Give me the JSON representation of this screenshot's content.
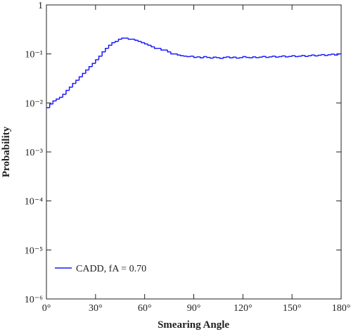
{
  "chart_data": {
    "type": "histogram",
    "x_label": "Smearing Angle",
    "y_label": "Probability",
    "log_y": true,
    "xlim": [
      0,
      180
    ],
    "ylim": [
      1e-06,
      1
    ],
    "xticks": [
      {
        "value": 0,
        "label": "0°"
      },
      {
        "value": 30,
        "label": "30°"
      },
      {
        "value": 60,
        "label": "60°"
      },
      {
        "value": 90,
        "label": "90°"
      },
      {
        "value": 120,
        "label": "120°"
      },
      {
        "value": 150,
        "label": "150°"
      },
      {
        "value": 180,
        "label": "180°"
      }
    ],
    "yticks": [
      {
        "value": 1e-06,
        "label": "10⁻⁶"
      },
      {
        "value": 1e-05,
        "label": "10⁻⁵"
      },
      {
        "value": 0.0001,
        "label": "10⁻⁴"
      },
      {
        "value": 0.001,
        "label": "10⁻³"
      },
      {
        "value": 0.01,
        "label": "10⁻²"
      },
      {
        "value": 0.1,
        "label": "10⁻¹"
      },
      1
    ],
    "legend": "lower left",
    "bins": [
      0,
      2,
      4,
      6,
      8,
      10,
      12,
      14,
      16,
      18,
      20,
      22,
      24,
      26,
      28,
      30,
      32,
      34,
      36,
      38,
      40,
      42,
      44,
      46,
      48,
      50,
      52,
      54,
      56,
      58,
      60,
      62,
      64,
      66,
      68,
      70,
      72,
      74,
      76,
      78,
      80,
      82,
      84,
      86,
      88,
      90,
      92,
      94,
      96,
      98,
      100,
      102,
      104,
      106,
      108,
      110,
      112,
      114,
      116,
      118,
      120,
      122,
      124,
      126,
      128,
      130,
      132,
      134,
      136,
      138,
      140,
      142,
      144,
      146,
      148,
      150,
      152,
      154,
      156,
      158,
      160,
      162,
      164,
      166,
      168,
      170,
      172,
      174,
      176,
      178,
      180
    ],
    "series": [
      {
        "name": "CADD, fA = 0.70",
        "color": "#1a1aff",
        "values": [
          0.008,
          0.0095,
          0.011,
          0.012,
          0.013,
          0.015,
          0.018,
          0.021,
          0.025,
          0.029,
          0.034,
          0.04,
          0.047,
          0.055,
          0.064,
          0.076,
          0.09,
          0.11,
          0.13,
          0.15,
          0.17,
          0.18,
          0.2,
          0.21,
          0.21,
          0.2,
          0.2,
          0.19,
          0.18,
          0.17,
          0.16,
          0.15,
          0.14,
          0.13,
          0.13,
          0.12,
          0.12,
          0.11,
          0.1,
          0.1,
          0.095,
          0.092,
          0.09,
          0.088,
          0.09,
          0.085,
          0.087,
          0.083,
          0.088,
          0.085,
          0.082,
          0.086,
          0.084,
          0.081,
          0.085,
          0.087,
          0.083,
          0.086,
          0.082,
          0.084,
          0.088,
          0.085,
          0.083,
          0.087,
          0.084,
          0.086,
          0.089,
          0.085,
          0.087,
          0.09,
          0.086,
          0.088,
          0.091,
          0.087,
          0.089,
          0.092,
          0.088,
          0.09,
          0.093,
          0.089,
          0.092,
          0.095,
          0.091,
          0.094,
          0.097,
          0.093,
          0.096,
          0.099,
          0.095,
          0.1
        ]
      }
    ]
  }
}
